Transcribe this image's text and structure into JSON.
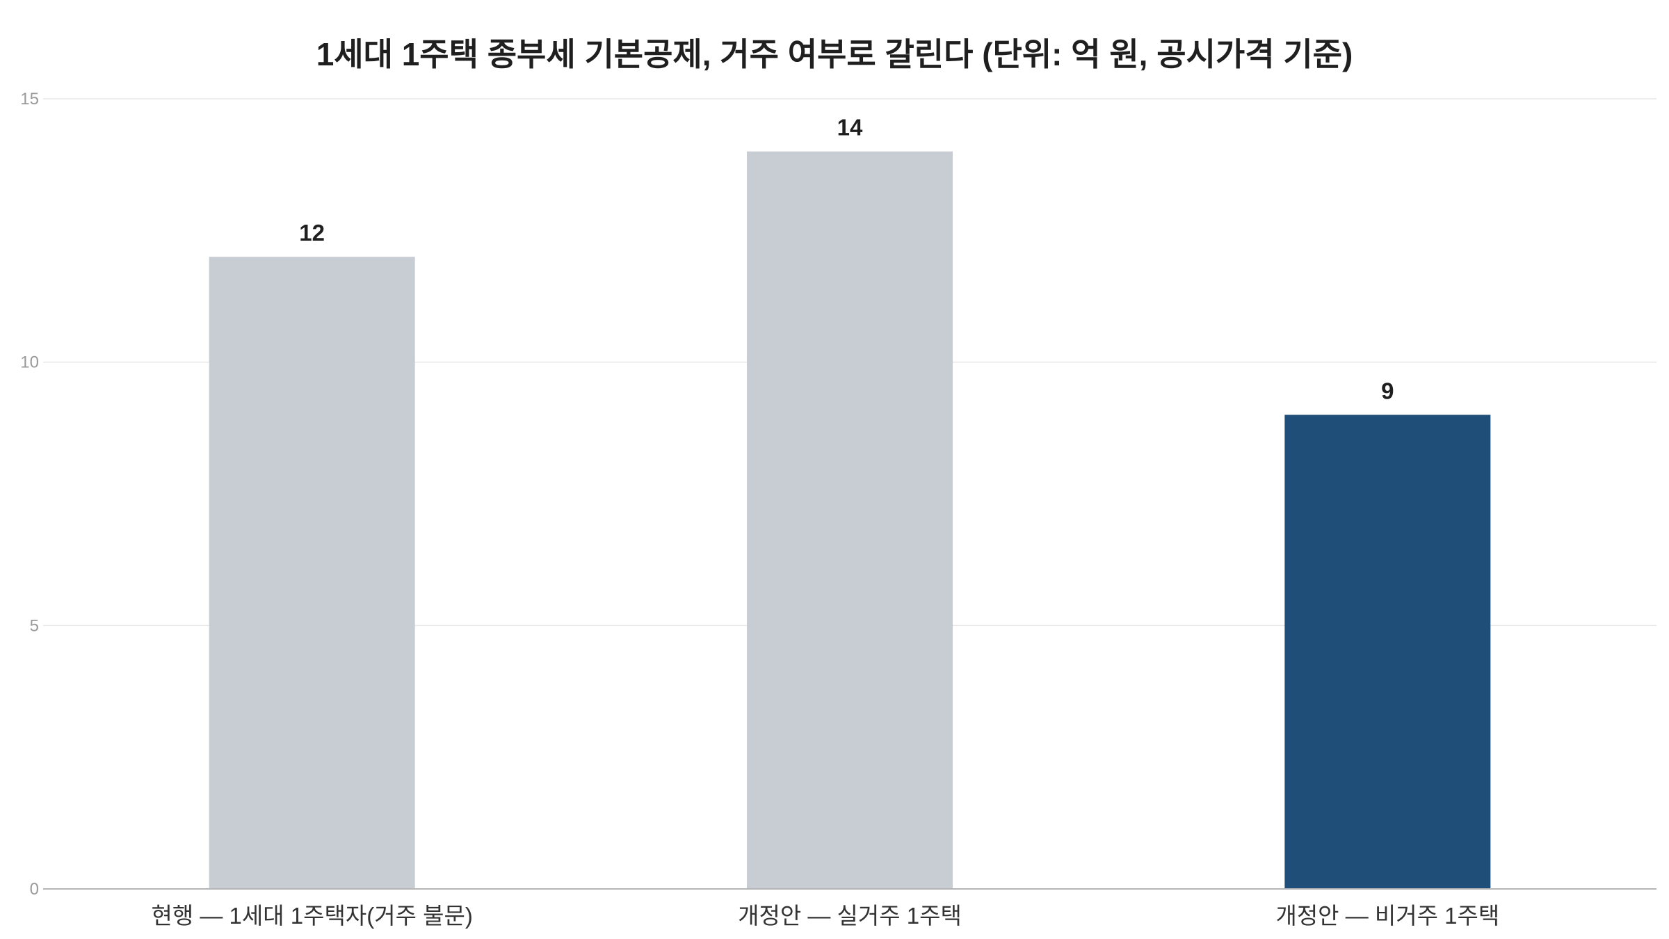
{
  "chart_data": {
    "type": "bar",
    "title": "1세대 1주택 종부세 기본공제, 거주 여부로 갈린다 (단위: 억 원, 공시가격 기준)",
    "xlabel": "",
    "ylabel": "",
    "categories": [
      "현행 — 1세대 1주택자(거주 불문)",
      "개정안 — 실거주 1주택",
      "개정안 — 비거주 1주택"
    ],
    "values": [
      12,
      14,
      9
    ],
    "value_labels": [
      "12",
      "14",
      "9"
    ],
    "bar_colors": [
      "#c8ccd3",
      "#c8ccd3",
      "#1f4e79"
    ],
    "ylim": [
      0,
      15
    ],
    "yticks": [
      0,
      5,
      10,
      15
    ],
    "ytick_labels": [
      "0",
      "5",
      "10",
      "15"
    ],
    "grid": true,
    "legend": "none",
    "colors": {
      "neutral_bar": "#c8ccd3",
      "highlight_bar": "#1f4e79",
      "gridline": "#e6e6e6",
      "axis": "#b5b5b5"
    }
  }
}
